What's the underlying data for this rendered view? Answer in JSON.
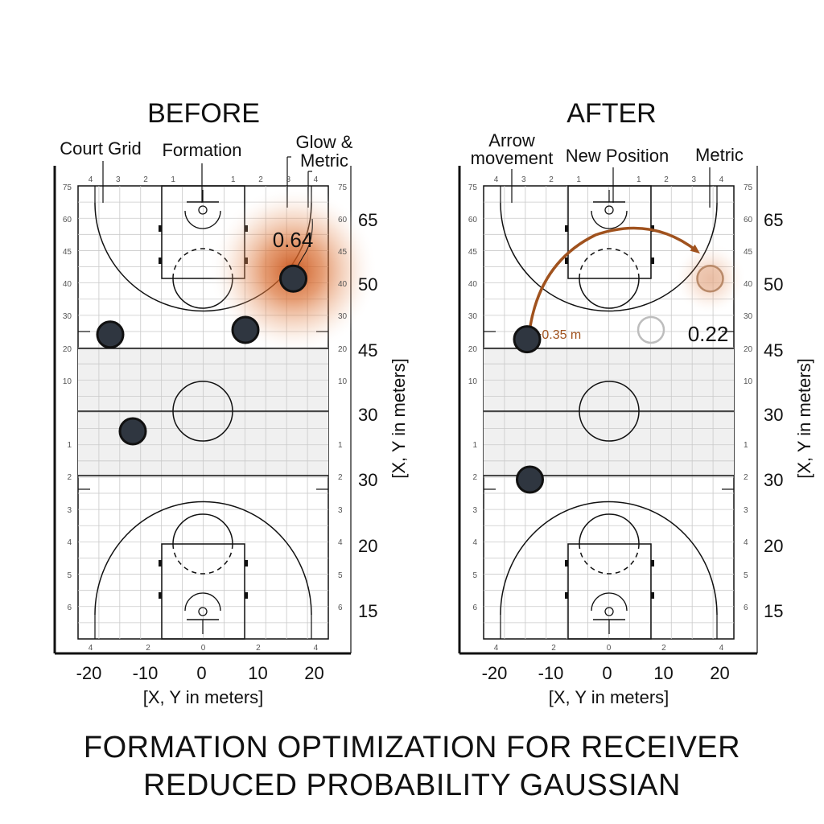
{
  "panels": [
    {
      "id": "before",
      "header": "BEFORE",
      "callouts": [
        "Court Grid",
        "Formation",
        "Glow &",
        "Metric"
      ],
      "metric": "0.64",
      "players": [
        [
          -16.5,
          44.5
        ],
        [
          7.5,
          45.0
        ],
        [
          -12.5,
          33.0
        ],
        [
          16.0,
          50.5
        ]
      ],
      "glow_level": 1.0
    },
    {
      "id": "after",
      "header": "AFTER",
      "callouts": [
        "Arrow",
        "movement",
        "New Position",
        "Metric"
      ],
      "metric": "0.22",
      "delta": "+0.35 m",
      "players": [
        [
          -14.5,
          44.0
        ],
        [
          -14.0,
          30.0
        ]
      ],
      "ghost_players": [
        [
          7.5,
          45.0
        ],
        [
          18.0,
          50.5
        ]
      ],
      "glow_level": 0.35
    }
  ],
  "small_ticks": {
    "top": [
      "4",
      "3",
      "2",
      "1",
      "1",
      "2",
      "3",
      "4"
    ],
    "bottom": [
      "4",
      "2",
      "0",
      "2",
      "4"
    ],
    "left": [
      "75",
      "60",
      "45",
      "40",
      "30",
      "20",
      "10",
      "1",
      "2",
      "3",
      "4",
      "5",
      "6"
    ],
    "right": [
      "75",
      "60",
      "45",
      "40",
      "30",
      "20",
      "10",
      "1",
      "2",
      "3",
      "4",
      "5",
      "6"
    ]
  },
  "axes": {
    "x_ticks": [
      "-20",
      "-10",
      "0",
      "10",
      "20"
    ],
    "y_ticks": [
      "65",
      "50",
      "45",
      "30",
      "30",
      "20",
      "15"
    ],
    "x_label": "[X, Y in meters]",
    "y_label": "[X, Y in meters]"
  },
  "title_line1": "FORMATION OPTIMIZATION FOR RECEIVER",
  "title_line2": "REDUCED PROBABILITY GAUSSIAN",
  "colors": {
    "player_fill": "#2f3640",
    "player_stroke": "#111111",
    "glow": "#c8531a",
    "arrow": "#a0521e",
    "mid_band": "#f0f0f0",
    "grid": "#c9c9c9",
    "line": "#111111"
  }
}
